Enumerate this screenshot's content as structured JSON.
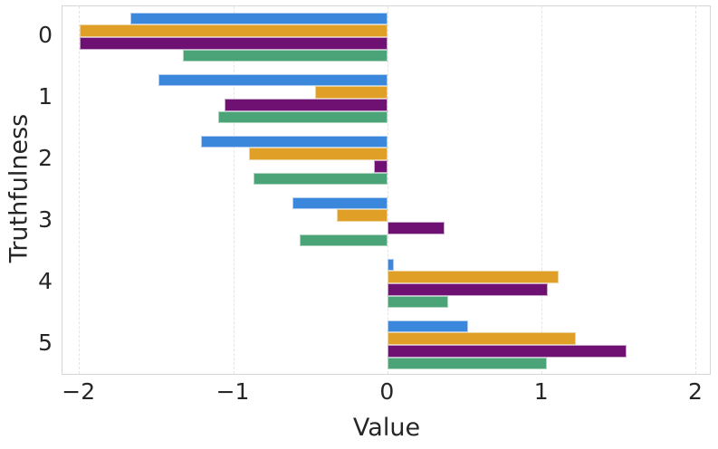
{
  "chart_data": {
    "type": "bar",
    "orientation": "horizontal",
    "title": "",
    "xlabel": "Value",
    "ylabel": "Truthfulness",
    "categories": [
      "0",
      "1",
      "2",
      "3",
      "4",
      "5"
    ],
    "series": [
      {
        "name": "blue",
        "color": "#3a87dc",
        "edge_color": "#aecbf0",
        "values": [
          -1.67,
          -1.49,
          -1.21,
          -0.62,
          0.04,
          0.52
        ]
      },
      {
        "name": "orange",
        "color": "#e0a028",
        "edge_color": "#eed39c",
        "values": [
          -2.0,
          -0.47,
          -0.9,
          -0.33,
          1.11,
          1.22
        ]
      },
      {
        "name": "purple",
        "color": "#6f1172",
        "edge_color": "#c9a6cc",
        "values": [
          -2.0,
          -1.06,
          -0.09,
          0.37,
          1.04,
          1.55
        ]
      },
      {
        "name": "green",
        "color": "#4aa477",
        "edge_color": "#abd5bf",
        "values": [
          -1.33,
          -1.1,
          -0.87,
          -0.57,
          0.39,
          1.03
        ]
      }
    ],
    "xlim": [
      -2.11,
      2.1
    ],
    "xticks": [
      -2,
      -1,
      0,
      1,
      2
    ],
    "xtick_labels": [
      "−2",
      "−1",
      "0",
      "1",
      "2"
    ],
    "bar_group_fill": 0.8,
    "grid": "vertical-dashed",
    "legend": "none",
    "background_color": "#ffffff",
    "spine_color": "#d6d6d6",
    "grid_color": "#e4e4e4",
    "text_color": "#262626"
  }
}
